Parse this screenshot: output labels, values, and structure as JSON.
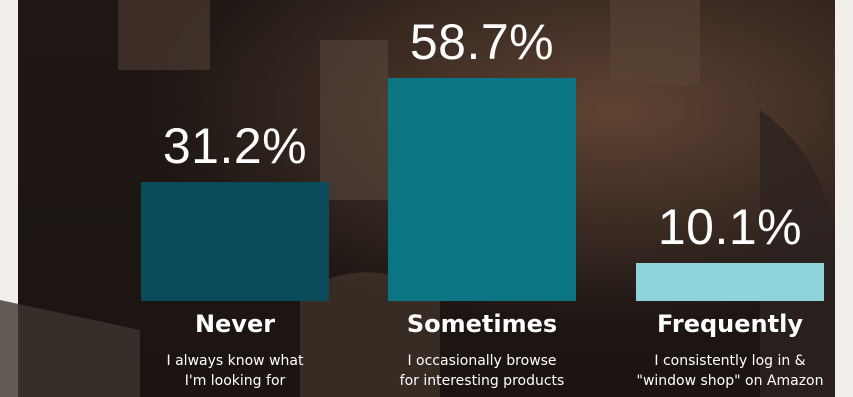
{
  "chart_data": {
    "type": "bar",
    "categories": [
      "Never",
      "Sometimes",
      "Frequently"
    ],
    "values": [
      31.2,
      58.7,
      10.1
    ],
    "value_labels": [
      "31.2%",
      "58.7%",
      "10.1%"
    ],
    "descriptions": [
      [
        "I always know what",
        "I'm looking for"
      ],
      [
        "I occasionally browse",
        "for interesting products"
      ],
      [
        "I consistently log in &",
        "\"window shop\" on Amazon"
      ]
    ],
    "bar_colors": [
      "#0b4a5a",
      "#0b7583",
      "#8ed4da"
    ],
    "title": "",
    "xlabel": "",
    "ylabel": "",
    "ylim": [
      0,
      58.7
    ],
    "grid": false,
    "legend": "none"
  },
  "background": {
    "description_color": "#ffffff",
    "overlay_color": "#1f140f"
  }
}
